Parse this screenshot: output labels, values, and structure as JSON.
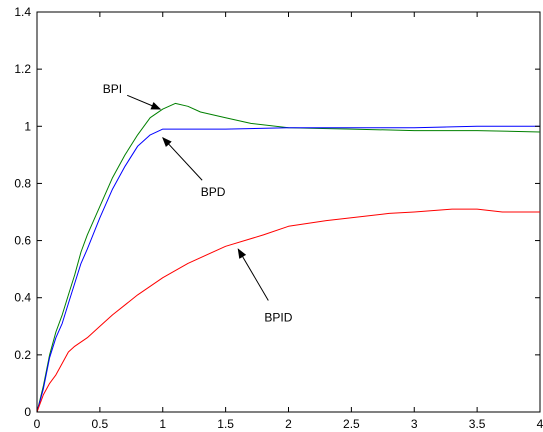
{
  "chart_data": {
    "type": "line",
    "title": "",
    "xlabel": "",
    "ylabel": "",
    "xlim": [
      0,
      4
    ],
    "ylim": [
      0,
      1.4
    ],
    "grid": false,
    "legend": "none",
    "x_ticks": [
      "0",
      "0.5",
      "1",
      "1.5",
      "2",
      "2.5",
      "3",
      "3.5",
      "4"
    ],
    "y_ticks": [
      "0",
      "0.2",
      "0.4",
      "0.6",
      "0.8",
      "1",
      "1.2",
      "1.4"
    ],
    "series": [
      {
        "color": "#008000",
        "x": [
          0,
          0.05,
          0.1,
          0.15,
          0.2,
          0.25,
          0.3,
          0.35,
          0.4,
          0.5,
          0.6,
          0.7,
          0.8,
          0.9,
          1.0,
          1.1,
          1.2,
          1.3,
          1.5,
          1.7,
          2.0,
          2.5,
          3.0,
          3.5,
          4.0
        ],
        "y": [
          0,
          0.09,
          0.2,
          0.28,
          0.34,
          0.41,
          0.48,
          0.56,
          0.62,
          0.72,
          0.82,
          0.9,
          0.97,
          1.03,
          1.06,
          1.08,
          1.07,
          1.05,
          1.03,
          1.01,
          0.995,
          0.99,
          0.985,
          0.985,
          0.98
        ]
      },
      {
        "color": "#0000ff",
        "x": [
          0,
          0.05,
          0.1,
          0.15,
          0.2,
          0.25,
          0.3,
          0.35,
          0.4,
          0.5,
          0.6,
          0.7,
          0.8,
          0.9,
          1.0,
          1.1,
          1.5,
          2.0,
          2.5,
          3.0,
          3.5,
          4.0
        ],
        "y": [
          0,
          0.08,
          0.19,
          0.26,
          0.31,
          0.38,
          0.45,
          0.52,
          0.57,
          0.68,
          0.78,
          0.86,
          0.93,
          0.97,
          0.99,
          0.99,
          0.99,
          0.995,
          0.995,
          0.995,
          1.0,
          1.0
        ]
      },
      {
        "color": "#ff0000",
        "x": [
          0,
          0.05,
          0.1,
          0.15,
          0.2,
          0.25,
          0.3,
          0.4,
          0.5,
          0.6,
          0.8,
          1.0,
          1.2,
          1.5,
          1.8,
          2.0,
          2.3,
          2.5,
          2.8,
          3.0,
          3.3,
          3.5,
          3.7,
          4.0
        ],
        "y": [
          0,
          0.06,
          0.1,
          0.13,
          0.17,
          0.21,
          0.23,
          0.26,
          0.3,
          0.34,
          0.41,
          0.47,
          0.52,
          0.58,
          0.62,
          0.65,
          0.67,
          0.68,
          0.695,
          0.7,
          0.71,
          0.71,
          0.7,
          0.7
        ]
      }
    ],
    "annotations": [
      {
        "text": "BPI",
        "label_x": 0.6,
        "label_y": 1.13,
        "target_x": 0.98,
        "target_y": 1.06
      },
      {
        "text": "BPD",
        "label_x": 1.4,
        "label_y": 0.77,
        "target_x": 1.0,
        "target_y": 0.96
      },
      {
        "text": "BPID",
        "label_x": 1.92,
        "label_y": 0.33,
        "target_x": 1.6,
        "target_y": 0.57
      }
    ]
  }
}
